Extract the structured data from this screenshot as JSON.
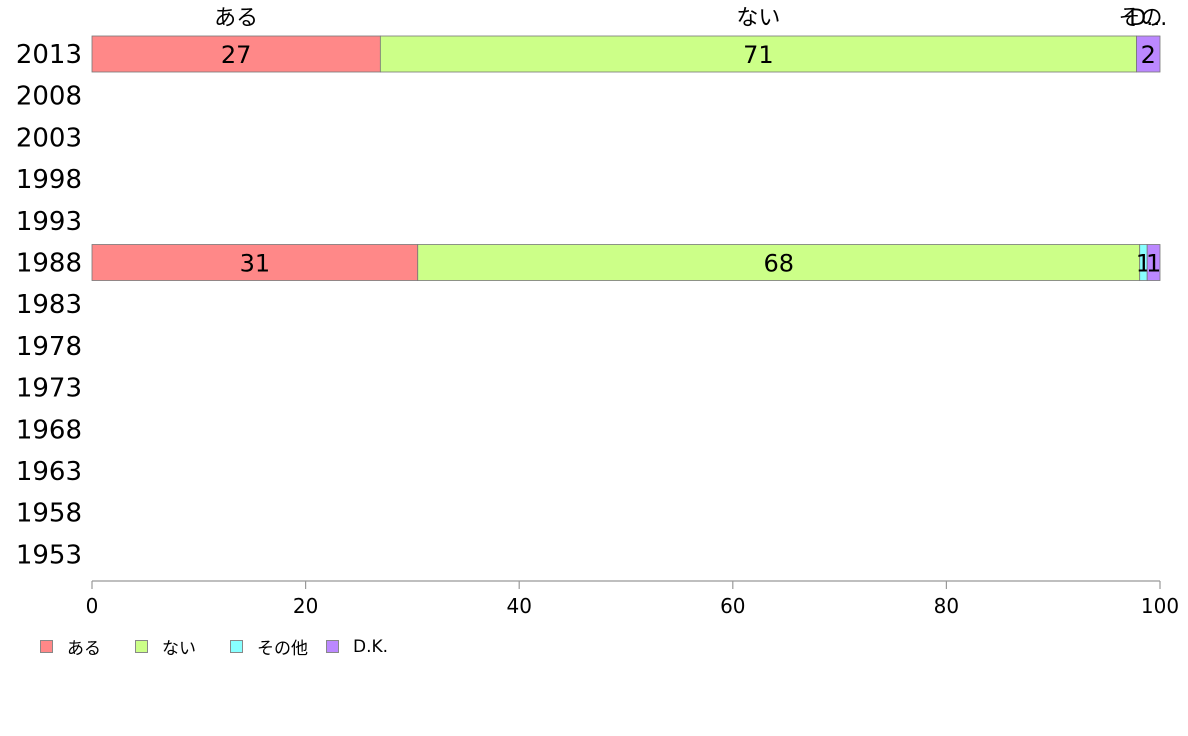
{
  "chart_data": {
    "type": "bar",
    "orientation": "horizontal",
    "stacked": true,
    "categories": [
      "2013",
      "2008",
      "2003",
      "1998",
      "1993",
      "1988",
      "1983",
      "1978",
      "1973",
      "1968",
      "1963",
      "1958",
      "1953"
    ],
    "series": [
      {
        "name": "ある",
        "color": "#ff8888",
        "values": [
          27,
          null,
          null,
          null,
          null,
          30.5,
          null,
          null,
          null,
          null,
          null,
          null,
          null
        ],
        "labels": [
          "27",
          "",
          "",
          "",
          "",
          "31",
          "",
          "",
          "",
          "",
          "",
          "",
          ""
        ]
      },
      {
        "name": "ない",
        "color": "#ccff88",
        "values": [
          70.8,
          null,
          null,
          null,
          null,
          67.6,
          null,
          null,
          null,
          null,
          null,
          null,
          null
        ],
        "labels": [
          "71",
          "",
          "",
          "",
          "",
          "68",
          "",
          "",
          "",
          "",
          "",
          "",
          ""
        ]
      },
      {
        "name": "その他",
        "color": "#88ffff",
        "values": [
          0,
          null,
          null,
          null,
          null,
          0.7,
          null,
          null,
          null,
          null,
          null,
          null,
          null
        ],
        "labels": [
          "",
          "",
          "",
          "",
          "",
          "1",
          "",
          "",
          "",
          "",
          "",
          "",
          ""
        ]
      },
      {
        "name": "D.K.",
        "color": "#bb88ff",
        "values": [
          2.2,
          null,
          null,
          null,
          null,
          1.2,
          null,
          null,
          null,
          null,
          null,
          null,
          null
        ],
        "labels": [
          "2",
          "",
          "",
          "",
          "",
          "1",
          "",
          "",
          "",
          "",
          "",
          "",
          ""
        ]
      }
    ],
    "top_labels": [
      "ある",
      "ない",
      "その他",
      "D.K."
    ],
    "top_labels_display": [
      "ある",
      "ない",
      "その",
      "D..."
    ],
    "xlim": [
      0,
      100
    ],
    "xticks": [
      0,
      20,
      40,
      60,
      80,
      100
    ],
    "legend_position": "bottom-left",
    "grid": false
  }
}
